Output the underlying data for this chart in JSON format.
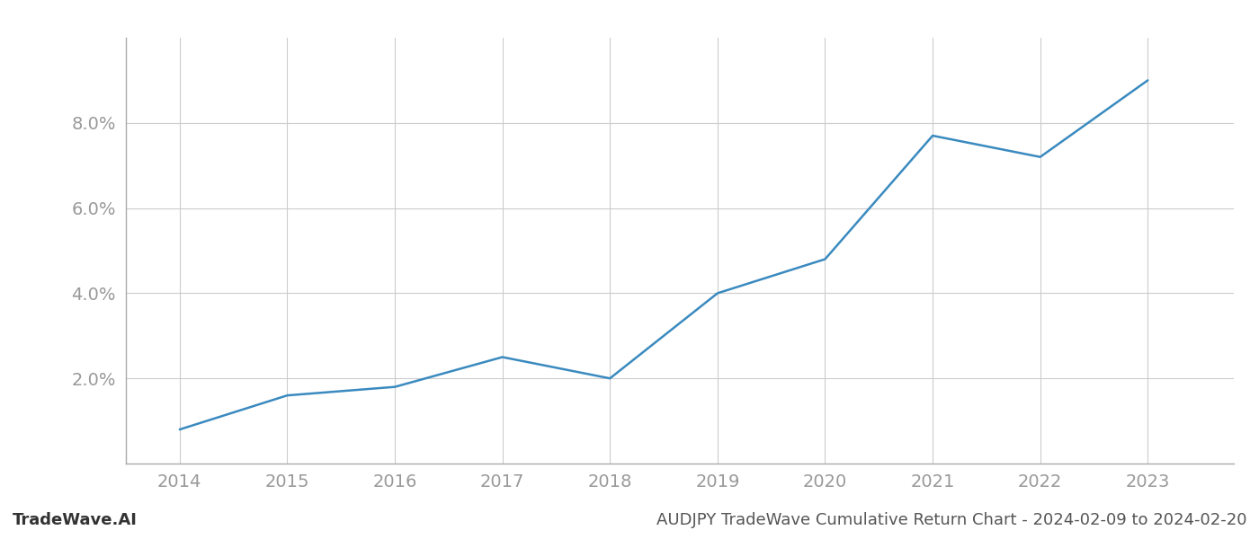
{
  "x_years": [
    2014,
    2015,
    2016,
    2017,
    2018,
    2019,
    2020,
    2021,
    2022,
    2023
  ],
  "y_values": [
    0.008,
    0.016,
    0.018,
    0.025,
    0.02,
    0.04,
    0.048,
    0.077,
    0.072,
    0.09
  ],
  "line_color": "#3a8abf",
  "line_width": 1.8,
  "background_color": "#ffffff",
  "grid_color": "#cccccc",
  "footer_left": "TradeWave.AI",
  "footer_right": "AUDJPY TradeWave Cumulative Return Chart - 2024-02-09 to 2024-02-20",
  "ytick_labels": [
    "2.0%",
    "4.0%",
    "6.0%",
    "8.0%"
  ],
  "ytick_values": [
    0.02,
    0.04,
    0.06,
    0.08
  ],
  "ylim": [
    0.0,
    0.1
  ],
  "xlim": [
    2013.5,
    2023.8
  ],
  "xtick_values": [
    2014,
    2015,
    2016,
    2017,
    2018,
    2019,
    2020,
    2021,
    2022,
    2023
  ],
  "tick_label_color": "#999999",
  "tick_label_fontsize": 14,
  "footer_fontsize": 13,
  "spine_color": "#aaaaaa"
}
